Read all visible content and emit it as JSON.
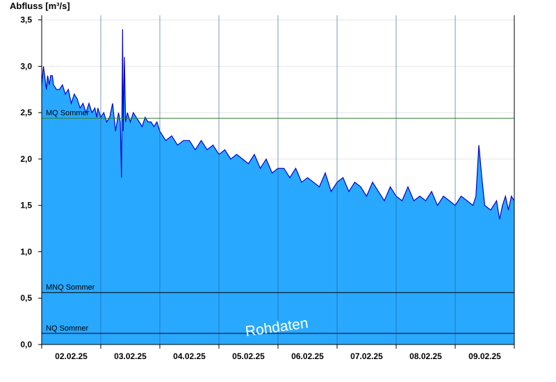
{
  "chart_data": {
    "type": "area",
    "ylabel": "Abfluss [m³/s]",
    "ylim": [
      0,
      3.55
    ],
    "y_ticks": [
      "0,0",
      "0,5",
      "1,0",
      "1,5",
      "2,0",
      "2,5",
      "3,0",
      "3,5"
    ],
    "y_tick_values": [
      0,
      0.5,
      1.0,
      1.5,
      2.0,
      2.5,
      3.0,
      3.5
    ],
    "x_range_days": [
      0,
      8
    ],
    "x_ticks": [
      "02.02.25",
      "03.02.25",
      "04.02.25",
      "05.02.25",
      "06.02.25",
      "07.02.25",
      "08.02.25",
      "09.02.25"
    ],
    "reference_lines": [
      {
        "name": "MQ Sommer",
        "value": 2.44,
        "color": "#2e7d32"
      },
      {
        "name": "MNQ Sommer",
        "value": 0.56,
        "color": "#000000"
      },
      {
        "name": "NQ Sommer",
        "value": 0.12,
        "color": "#000000"
      }
    ],
    "watermark": "Rohdaten",
    "grid": "horizontal",
    "colors": {
      "fill": "#29a8ff",
      "line": "#0000cc"
    },
    "series": [
      {
        "x": [
          0,
          0.03,
          0.05,
          0.08,
          0.1,
          0.13,
          0.15,
          0.18,
          0.2,
          0.25,
          0.3,
          0.35,
          0.4,
          0.45,
          0.5,
          0.55,
          0.6,
          0.65,
          0.7,
          0.75,
          0.8,
          0.85,
          0.9,
          0.93,
          0.95,
          1.0,
          1.05,
          1.1,
          1.15,
          1.2,
          1.25,
          1.3,
          1.33,
          1.35,
          1.37,
          1.38,
          1.4,
          1.42,
          1.45,
          1.5,
          1.55,
          1.6,
          1.65,
          1.7,
          1.75,
          1.8,
          1.85,
          1.9,
          1.95,
          2.0,
          2.1,
          2.2,
          2.3,
          2.4,
          2.5,
          2.6,
          2.7,
          2.8,
          2.9,
          3.0,
          3.1,
          3.2,
          3.3,
          3.4,
          3.5,
          3.6,
          3.7,
          3.8,
          3.9,
          4.0,
          4.1,
          4.2,
          4.3,
          4.4,
          4.5,
          4.6,
          4.7,
          4.8,
          4.9,
          5.0,
          5.1,
          5.2,
          5.3,
          5.4,
          5.5,
          5.6,
          5.7,
          5.8,
          5.9,
          6.0,
          6.1,
          6.2,
          6.3,
          6.4,
          6.5,
          6.6,
          6.7,
          6.8,
          6.9,
          7.0,
          7.1,
          7.2,
          7.3,
          7.35,
          7.4,
          7.45,
          7.5,
          7.6,
          7.7,
          7.75,
          7.8,
          7.85,
          7.9,
          7.95,
          8.0
        ],
        "y": [
          2.8,
          3.0,
          2.9,
          2.75,
          2.9,
          2.8,
          2.9,
          2.9,
          2.8,
          2.75,
          2.75,
          2.8,
          2.7,
          2.75,
          2.6,
          2.7,
          2.65,
          2.55,
          2.6,
          2.5,
          2.6,
          2.5,
          2.55,
          2.45,
          2.55,
          2.45,
          2.5,
          2.4,
          2.45,
          2.6,
          2.3,
          2.5,
          2.4,
          1.8,
          3.4,
          2.3,
          3.1,
          2.4,
          2.5,
          2.4,
          2.5,
          2.45,
          2.4,
          2.35,
          2.45,
          2.4,
          2.4,
          2.35,
          2.4,
          2.3,
          2.2,
          2.25,
          2.15,
          2.2,
          2.2,
          2.1,
          2.2,
          2.1,
          2.15,
          2.05,
          2.1,
          2.0,
          2.05,
          2.0,
          1.95,
          2.05,
          1.9,
          2.0,
          1.85,
          1.9,
          1.9,
          1.8,
          1.9,
          1.75,
          1.8,
          1.75,
          1.7,
          1.85,
          1.65,
          1.75,
          1.8,
          1.65,
          1.75,
          1.7,
          1.6,
          1.75,
          1.65,
          1.55,
          1.7,
          1.6,
          1.55,
          1.7,
          1.55,
          1.6,
          1.55,
          1.65,
          1.5,
          1.6,
          1.55,
          1.5,
          1.6,
          1.55,
          1.5,
          1.6,
          2.15,
          1.8,
          1.5,
          1.45,
          1.55,
          1.35,
          1.5,
          1.6,
          1.45,
          1.6,
          1.55
        ]
      }
    ]
  }
}
